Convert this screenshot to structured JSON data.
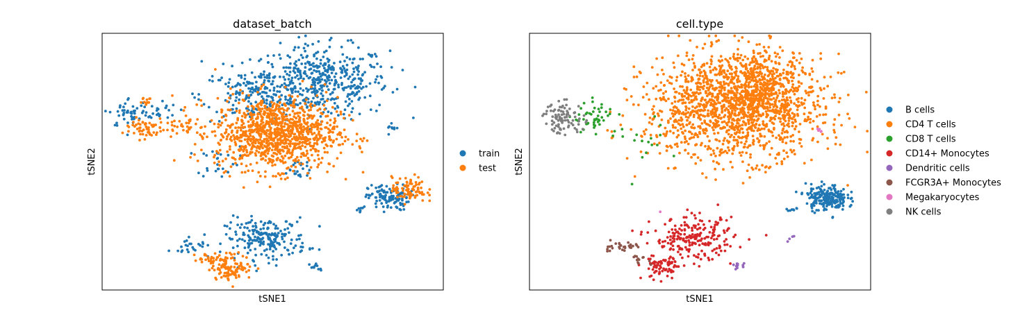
{
  "chart_data": [
    {
      "type": "scatter",
      "title": "dataset_batch",
      "xlabel": "tSNE1",
      "ylabel": "tSNE2",
      "xlim": [
        0,
        100
      ],
      "ylim": [
        0,
        100
      ],
      "grid": false,
      "legend_position": "right, outside",
      "series": [
        {
          "name": "train",
          "color": "#1f77b4",
          "clusters": [
            {
              "cx": 64,
              "cy": 81,
              "sx": 10,
              "sy": 7,
              "n": 470
            },
            {
              "cx": 45,
              "cy": 76,
              "sx": 8,
              "sy": 5,
              "n": 170
            },
            {
              "cx": 8,
              "cy": 69,
              "sx": 3,
              "sy": 3,
              "n": 45
            },
            {
              "cx": 16,
              "cy": 70,
              "sx": 3,
              "sy": 2,
              "n": 25
            },
            {
              "cx": 34,
              "cy": 50,
              "sx": 3,
              "sy": 3,
              "n": 25
            },
            {
              "cx": 57,
              "cy": 47,
              "sx": 3,
              "sy": 2.5,
              "n": 22
            },
            {
              "cx": 84,
              "cy": 36,
              "sx": 3,
              "sy": 2.5,
              "n": 120
            },
            {
              "cx": 76,
              "cy": 31,
              "sx": 1,
              "sy": 0.8,
              "n": 8
            },
            {
              "cx": 48,
              "cy": 20,
              "sx": 6,
              "sy": 4,
              "n": 210
            },
            {
              "cx": 26,
              "cy": 17,
              "sx": 3,
              "sy": 1,
              "n": 22
            },
            {
              "cx": 63,
              "cy": 9,
              "sx": 1.3,
              "sy": 0.8,
              "n": 10
            },
            {
              "cx": 85,
              "cy": 63,
              "sx": 0.8,
              "sy": 0.8,
              "n": 8
            }
          ]
        },
        {
          "name": "test",
          "color": "#ff7f0e",
          "clusters": [
            {
              "cx": 51,
              "cy": 61,
              "sx": 9,
              "sy": 7,
              "n": 1060
            },
            {
              "cx": 12,
              "cy": 63,
              "sx": 3,
              "sy": 2,
              "n": 55
            },
            {
              "cx": 23,
              "cy": 64,
              "sx": 3.5,
              "sy": 2,
              "n": 35
            },
            {
              "cx": 12,
              "cy": 74,
              "sx": 1.2,
              "sy": 1,
              "n": 12
            },
            {
              "cx": 90,
              "cy": 39,
              "sx": 2.5,
              "sy": 2.5,
              "n": 85
            },
            {
              "cx": 38,
              "cy": 9,
              "sx": 3,
              "sy": 2.5,
              "n": 110
            },
            {
              "cx": 31,
              "cy": 12,
              "sx": 2,
              "sy": 1.2,
              "n": 25
            }
          ]
        }
      ]
    },
    {
      "type": "scatter",
      "title": "cell.type",
      "xlabel": "tSNE1",
      "ylabel": "tSNE2",
      "xlim": [
        0,
        100
      ],
      "ylim": [
        0,
        100
      ],
      "grid": false,
      "legend_position": "right, outside",
      "series": [
        {
          "name": "B cells",
          "color": "#1f77b4",
          "clusters": [
            {
              "cx": 87,
              "cy": 36,
              "sx": 3,
              "sy": 2.5,
              "n": 210
            },
            {
              "cx": 77,
              "cy": 31,
              "sx": 1,
              "sy": 0.8,
              "n": 8
            }
          ]
        },
        {
          "name": "CD4 T cells",
          "color": "#ff7f0e",
          "clusters": [
            {
              "cx": 60,
              "cy": 71,
              "sx": 13,
              "sy": 10,
              "n": 1450
            },
            {
              "cx": 68,
              "cy": 80,
              "sx": 7,
              "sy": 7,
              "n": 350
            }
          ]
        },
        {
          "name": "CD8 T cells",
          "color": "#2ca02c",
          "clusters": [
            {
              "cx": 19,
              "cy": 67,
              "sx": 3,
              "sy": 3,
              "n": 45
            },
            {
              "cx": 34,
              "cy": 58,
              "sx": 5,
              "sy": 6,
              "n": 20
            }
          ]
        },
        {
          "name": "CD14+ Monocytes",
          "color": "#d62728",
          "clusters": [
            {
              "cx": 48,
              "cy": 20,
              "sx": 6,
              "sy": 4,
              "n": 220
            },
            {
              "cx": 39,
              "cy": 9,
              "sx": 3,
              "sy": 2.5,
              "n": 80
            }
          ]
        },
        {
          "name": "Dendritic cells",
          "color": "#9467bd",
          "clusters": [
            {
              "cx": 62,
              "cy": 9,
              "sx": 1.2,
              "sy": 0.8,
              "n": 12
            },
            {
              "cx": 77,
              "cy": 20,
              "sx": 0.8,
              "sy": 0.6,
              "n": 4
            }
          ]
        },
        {
          "name": "FCGR3A+ Monocytes",
          "color": "#8c564b",
          "clusters": [
            {
              "cx": 26,
              "cy": 17,
              "sx": 3,
              "sy": 1,
              "n": 30
            },
            {
              "cx": 32,
              "cy": 12,
              "sx": 1.5,
              "sy": 1,
              "n": 12
            }
          ]
        },
        {
          "name": "Megakaryocytes",
          "color": "#e377c2",
          "clusters": [
            {
              "cx": 85,
              "cy": 62,
              "sx": 0.6,
              "sy": 0.6,
              "n": 6
            },
            {
              "cx": 39,
              "cy": 30,
              "sx": 0.3,
              "sy": 0.3,
              "n": 1
            }
          ]
        },
        {
          "name": "NK cells",
          "color": "#7f7f7f",
          "clusters": [
            {
              "cx": 10,
              "cy": 67,
              "sx": 3,
              "sy": 3,
              "n": 90
            }
          ]
        }
      ]
    }
  ]
}
